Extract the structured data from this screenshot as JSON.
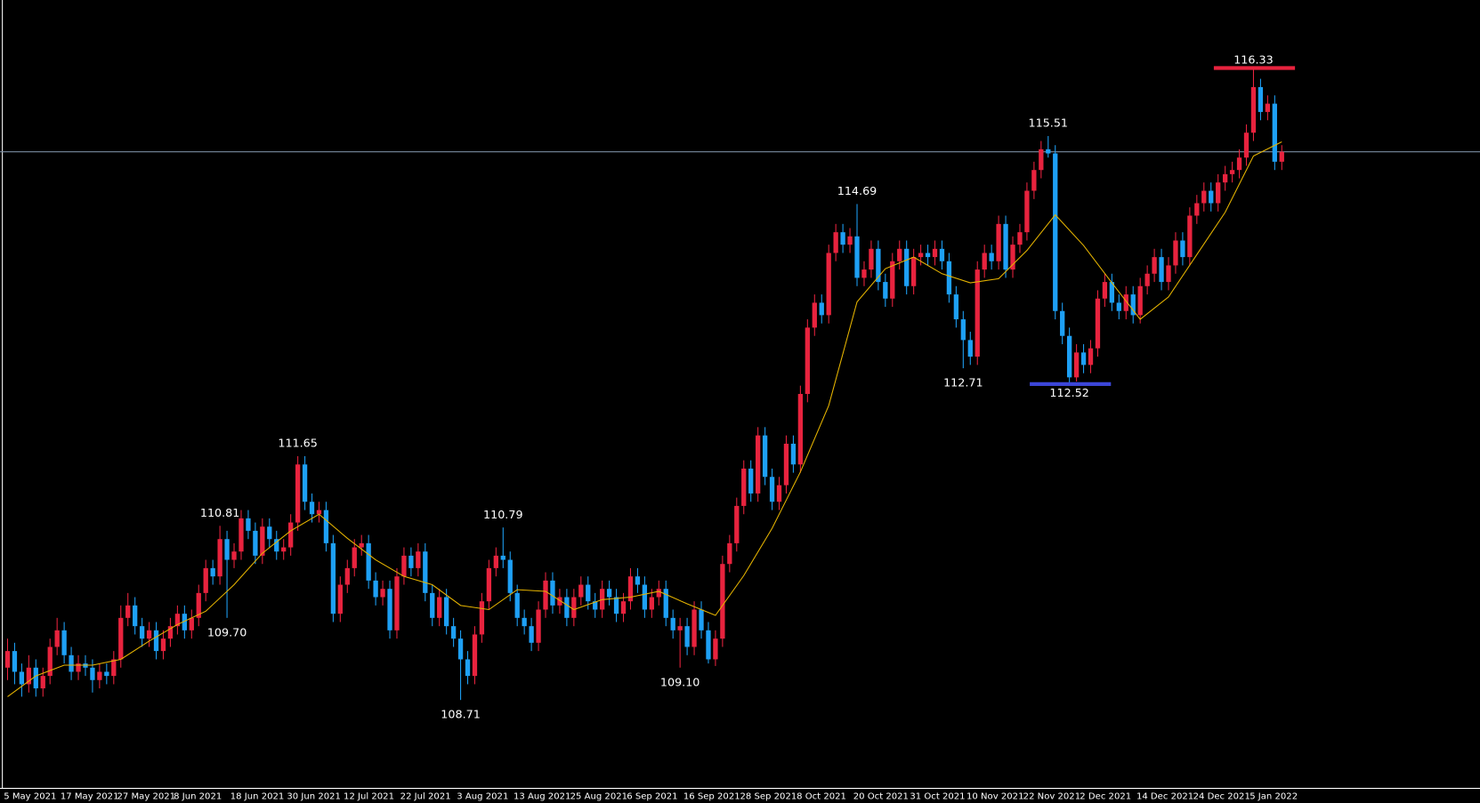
{
  "chart_data": {
    "type": "candlestick",
    "categories": [
      "5 May 2021",
      null,
      null,
      null,
      null,
      null,
      null,
      null,
      "17 May 2021",
      null,
      null,
      null,
      null,
      null,
      null,
      null,
      "27 May 2021",
      null,
      null,
      null,
      null,
      null,
      null,
      null,
      "8 Jun 2021",
      null,
      null,
      null,
      null,
      null,
      null,
      null,
      "18 Jun 2021",
      null,
      null,
      null,
      null,
      null,
      null,
      null,
      "30 Jun 2021",
      null,
      null,
      null,
      null,
      null,
      null,
      null,
      "12 Jul 2021",
      null,
      null,
      null,
      null,
      null,
      null,
      null,
      "22 Jul 2021",
      null,
      null,
      null,
      null,
      null,
      null,
      null,
      "3 Aug 2021",
      null,
      null,
      null,
      null,
      null,
      null,
      null,
      "13 Aug 2021",
      null,
      null,
      null,
      null,
      null,
      null,
      null,
      "25 Aug 2021",
      null,
      null,
      null,
      null,
      null,
      null,
      null,
      "6 Sep 2021",
      null,
      null,
      null,
      null,
      null,
      null,
      null,
      "16 Sep 2021",
      null,
      null,
      null,
      null,
      null,
      null,
      null,
      "28 Sep 2021",
      null,
      null,
      null,
      null,
      null,
      null,
      null,
      "8 Oct 2021",
      null,
      null,
      null,
      null,
      null,
      null,
      null,
      "20 Oct 2021",
      null,
      null,
      null,
      null,
      null,
      null,
      null,
      "31 Oct 2021",
      null,
      null,
      null,
      null,
      null,
      null,
      null,
      "10 Nov 2021",
      null,
      null,
      null,
      null,
      null,
      null,
      null,
      "22 Nov 2021",
      null,
      null,
      null,
      null,
      null,
      null,
      null,
      "2 Dec 2021",
      null,
      null,
      null,
      null,
      null,
      null,
      null,
      "14 Dec 2021",
      null,
      null,
      null,
      null,
      null,
      null,
      null,
      "24 Dec 2021",
      null,
      null,
      null,
      null,
      null,
      null,
      null,
      "5 Jan 2022",
      null,
      null,
      null,
      null
    ],
    "values": [
      [
        109.1,
        109.45,
        108.95,
        109.3
      ],
      [
        109.3,
        109.4,
        108.9,
        109.05
      ],
      [
        109.05,
        109.15,
        108.75,
        108.9
      ],
      [
        108.9,
        109.25,
        108.8,
        109.1
      ],
      [
        109.1,
        109.2,
        108.75,
        108.85
      ],
      [
        108.85,
        109.1,
        108.75,
        109.0
      ],
      [
        109.0,
        109.45,
        108.9,
        109.35
      ],
      [
        109.35,
        109.7,
        109.25,
        109.55
      ],
      [
        109.55,
        109.65,
        109.15,
        109.25
      ],
      [
        109.25,
        109.35,
        108.95,
        109.05
      ],
      [
        109.05,
        109.25,
        108.95,
        109.15
      ],
      [
        109.15,
        109.25,
        109.0,
        109.1
      ],
      [
        109.1,
        109.2,
        108.8,
        108.95
      ],
      [
        108.95,
        109.15,
        108.85,
        109.05
      ],
      [
        109.05,
        109.15,
        108.9,
        109.0
      ],
      [
        109.0,
        109.3,
        108.9,
        109.2
      ],
      [
        109.2,
        109.85,
        109.1,
        109.7
      ],
      [
        109.7,
        110.0,
        109.6,
        109.85
      ],
      [
        109.85,
        109.95,
        109.5,
        109.6
      ],
      [
        109.6,
        109.7,
        109.35,
        109.45
      ],
      [
        109.45,
        109.65,
        109.35,
        109.55
      ],
      [
        109.55,
        109.65,
        109.2,
        109.3
      ],
      [
        109.3,
        109.55,
        109.2,
        109.45
      ],
      [
        109.45,
        109.7,
        109.35,
        109.6
      ],
      [
        109.6,
        109.85,
        109.5,
        109.75
      ],
      [
        109.75,
        109.85,
        109.45,
        109.55
      ],
      [
        109.55,
        109.8,
        109.45,
        109.7
      ],
      [
        109.7,
        110.1,
        109.6,
        110.0
      ],
      [
        110.0,
        110.4,
        109.9,
        110.3
      ],
      [
        110.3,
        110.4,
        110.1,
        110.2
      ],
      [
        110.2,
        110.81,
        110.1,
        110.65
      ],
      [
        110.65,
        110.75,
        109.7,
        110.4
      ],
      [
        110.4,
        110.6,
        110.3,
        110.5
      ],
      [
        110.5,
        111.0,
        110.4,
        110.9
      ],
      [
        110.9,
        111.0,
        110.65,
        110.75
      ],
      [
        110.75,
        110.85,
        110.35,
        110.45
      ],
      [
        110.45,
        110.9,
        110.35,
        110.8
      ],
      [
        110.8,
        110.9,
        110.55,
        110.65
      ],
      [
        110.65,
        110.75,
        110.4,
        110.5
      ],
      [
        110.5,
        110.65,
        110.4,
        110.55
      ],
      [
        110.55,
        110.95,
        110.45,
        110.85
      ],
      [
        110.85,
        111.65,
        110.75,
        111.55
      ],
      [
        111.55,
        111.65,
        111.0,
        111.1
      ],
      [
        111.1,
        111.2,
        110.85,
        110.95
      ],
      [
        110.95,
        111.1,
        110.85,
        111.0
      ],
      [
        111.0,
        111.1,
        110.5,
        110.6
      ],
      [
        110.6,
        110.7,
        109.65,
        109.75
      ],
      [
        109.75,
        110.2,
        109.65,
        110.1
      ],
      [
        110.1,
        110.4,
        110.0,
        110.3
      ],
      [
        110.3,
        110.65,
        110.2,
        110.55
      ],
      [
        110.55,
        110.7,
        110.45,
        110.6
      ],
      [
        110.6,
        110.7,
        110.05,
        110.15
      ],
      [
        110.15,
        110.25,
        109.85,
        109.95
      ],
      [
        109.95,
        110.15,
        109.85,
        110.05
      ],
      [
        110.05,
        110.15,
        109.45,
        109.55
      ],
      [
        109.55,
        110.3,
        109.45,
        110.2
      ],
      [
        110.2,
        110.55,
        110.1,
        110.45
      ],
      [
        110.45,
        110.55,
        110.2,
        110.3
      ],
      [
        110.3,
        110.6,
        110.2,
        110.5
      ],
      [
        110.5,
        110.6,
        109.9,
        110.0
      ],
      [
        110.0,
        110.1,
        109.6,
        109.7
      ],
      [
        109.7,
        110.05,
        109.6,
        109.95
      ],
      [
        109.95,
        110.05,
        109.5,
        109.6
      ],
      [
        109.6,
        109.7,
        109.35,
        109.45
      ],
      [
        109.45,
        109.55,
        108.71,
        109.2
      ],
      [
        109.2,
        109.3,
        108.9,
        109.0
      ],
      [
        109.0,
        109.6,
        108.9,
        109.5
      ],
      [
        109.5,
        110.0,
        109.4,
        109.9
      ],
      [
        109.9,
        110.4,
        109.8,
        110.3
      ],
      [
        110.3,
        110.55,
        110.2,
        110.45
      ],
      [
        110.45,
        110.79,
        110.3,
        110.4
      ],
      [
        110.4,
        110.5,
        109.9,
        110.0
      ],
      [
        110.0,
        110.1,
        109.6,
        109.7
      ],
      [
        109.7,
        109.8,
        109.5,
        109.6
      ],
      [
        109.6,
        109.7,
        109.3,
        109.4
      ],
      [
        109.4,
        109.9,
        109.3,
        109.8
      ],
      [
        109.8,
        110.25,
        109.7,
        110.15
      ],
      [
        110.15,
        110.25,
        109.75,
        109.85
      ],
      [
        109.85,
        110.05,
        109.75,
        109.95
      ],
      [
        109.95,
        110.05,
        109.6,
        109.7
      ],
      [
        109.7,
        110.05,
        109.6,
        109.95
      ],
      [
        109.95,
        110.2,
        109.85,
        110.1
      ],
      [
        110.1,
        110.2,
        109.8,
        109.9
      ],
      [
        109.9,
        110.0,
        109.7,
        109.8
      ],
      [
        109.8,
        110.15,
        109.7,
        110.05
      ],
      [
        110.05,
        110.15,
        109.85,
        109.95
      ],
      [
        109.95,
        110.05,
        109.65,
        109.75
      ],
      [
        109.75,
        110.0,
        109.65,
        109.9
      ],
      [
        109.9,
        110.3,
        109.8,
        110.2
      ],
      [
        110.2,
        110.3,
        110.0,
        110.1
      ],
      [
        110.1,
        110.2,
        109.7,
        109.8
      ],
      [
        109.8,
        110.05,
        109.7,
        109.95
      ],
      [
        109.95,
        110.15,
        109.85,
        110.05
      ],
      [
        110.05,
        110.15,
        109.6,
        109.7
      ],
      [
        109.7,
        109.8,
        109.45,
        109.55
      ],
      [
        109.55,
        109.7,
        109.1,
        109.6
      ],
      [
        109.6,
        109.7,
        109.25,
        109.35
      ],
      [
        109.35,
        109.9,
        109.25,
        109.8
      ],
      [
        109.8,
        109.9,
        109.45,
        109.55
      ],
      [
        109.55,
        109.65,
        109.15,
        109.2
      ],
      [
        109.2,
        109.55,
        109.12,
        109.45
      ],
      [
        109.45,
        110.45,
        109.35,
        110.35
      ],
      [
        110.35,
        110.7,
        110.25,
        110.6
      ],
      [
        110.6,
        111.15,
        110.5,
        111.05
      ],
      [
        111.05,
        111.6,
        110.95,
        111.5
      ],
      [
        111.5,
        111.6,
        111.1,
        111.2
      ],
      [
        111.2,
        112.0,
        111.1,
        111.9
      ],
      [
        111.9,
        112.0,
        111.3,
        111.4
      ],
      [
        111.4,
        111.5,
        111.0,
        111.1
      ],
      [
        111.1,
        111.4,
        111.0,
        111.3
      ],
      [
        111.3,
        111.9,
        111.2,
        111.8
      ],
      [
        111.8,
        111.9,
        111.45,
        111.55
      ],
      [
        111.55,
        112.5,
        111.45,
        112.4
      ],
      [
        112.4,
        113.3,
        112.3,
        113.2
      ],
      [
        113.2,
        113.6,
        113.1,
        113.5
      ],
      [
        113.5,
        113.6,
        113.25,
        113.35
      ],
      [
        113.35,
        114.2,
        113.25,
        114.1
      ],
      [
        114.1,
        114.45,
        114.0,
        114.35
      ],
      [
        114.35,
        114.45,
        114.1,
        114.2
      ],
      [
        114.2,
        114.4,
        114.1,
        114.3
      ],
      [
        114.3,
        114.69,
        113.7,
        113.8
      ],
      [
        113.8,
        114.0,
        113.7,
        113.9
      ],
      [
        113.9,
        114.25,
        113.8,
        114.15
      ],
      [
        114.15,
        114.25,
        113.65,
        113.75
      ],
      [
        113.75,
        113.85,
        113.45,
        113.55
      ],
      [
        113.55,
        114.1,
        113.45,
        114.0
      ],
      [
        114.0,
        114.25,
        113.9,
        114.15
      ],
      [
        114.15,
        114.25,
        113.6,
        113.7
      ],
      [
        113.7,
        114.15,
        113.6,
        114.05
      ],
      [
        114.05,
        114.2,
        113.95,
        114.1
      ],
      [
        114.1,
        114.2,
        113.95,
        114.05
      ],
      [
        114.05,
        114.25,
        113.95,
        114.15
      ],
      [
        114.15,
        114.25,
        113.9,
        114.0
      ],
      [
        114.0,
        114.1,
        113.5,
        113.6
      ],
      [
        113.6,
        113.7,
        113.2,
        113.3
      ],
      [
        113.3,
        113.4,
        112.71,
        113.05
      ],
      [
        113.05,
        113.15,
        112.75,
        112.85
      ],
      [
        112.85,
        114.0,
        112.75,
        113.9
      ],
      [
        113.9,
        114.2,
        113.8,
        114.1
      ],
      [
        114.1,
        114.2,
        113.9,
        114.0
      ],
      [
        114.0,
        114.55,
        113.9,
        114.45
      ],
      [
        114.45,
        114.55,
        113.8,
        113.9
      ],
      [
        113.9,
        114.3,
        113.8,
        114.2
      ],
      [
        114.2,
        114.45,
        114.1,
        114.35
      ],
      [
        114.35,
        114.95,
        114.25,
        114.85
      ],
      [
        114.85,
        115.2,
        114.75,
        115.1
      ],
      [
        115.1,
        115.45,
        115.0,
        115.35
      ],
      [
        115.35,
        115.51,
        115.25,
        115.3
      ],
      [
        115.3,
        115.4,
        113.3,
        113.4
      ],
      [
        113.4,
        113.5,
        113.0,
        113.1
      ],
      [
        113.1,
        113.2,
        112.52,
        112.6
      ],
      [
        112.6,
        113.0,
        112.55,
        112.9
      ],
      [
        112.9,
        113.0,
        112.65,
        112.75
      ],
      [
        112.75,
        113.05,
        112.65,
        112.95
      ],
      [
        112.95,
        113.65,
        112.85,
        113.55
      ],
      [
        113.55,
        113.85,
        113.45,
        113.75
      ],
      [
        113.75,
        113.85,
        113.4,
        113.5
      ],
      [
        113.5,
        113.6,
        113.3,
        113.4
      ],
      [
        113.4,
        113.7,
        113.3,
        113.6
      ],
      [
        113.6,
        113.7,
        113.25,
        113.35
      ],
      [
        113.35,
        113.8,
        113.25,
        113.7
      ],
      [
        113.7,
        113.95,
        113.6,
        113.85
      ],
      [
        113.85,
        114.15,
        113.75,
        114.05
      ],
      [
        114.05,
        114.15,
        113.65,
        113.75
      ],
      [
        113.75,
        114.05,
        113.65,
        113.95
      ],
      [
        113.95,
        114.35,
        113.85,
        114.25
      ],
      [
        114.25,
        114.35,
        113.95,
        114.05
      ],
      [
        114.05,
        114.65,
        113.95,
        114.55
      ],
      [
        114.55,
        114.8,
        114.45,
        114.7
      ],
      [
        114.7,
        114.95,
        114.6,
        114.85
      ],
      [
        114.85,
        114.95,
        114.6,
        114.7
      ],
      [
        114.7,
        115.05,
        114.6,
        114.95
      ],
      [
        114.95,
        115.15,
        114.85,
        115.05
      ],
      [
        115.05,
        115.2,
        114.95,
        115.1
      ],
      [
        115.1,
        115.35,
        115.0,
        115.25
      ],
      [
        115.25,
        115.65,
        115.15,
        115.55
      ],
      [
        115.55,
        116.33,
        115.45,
        116.1
      ],
      [
        116.1,
        116.2,
        115.7,
        115.8
      ],
      [
        115.8,
        116.0,
        115.7,
        115.9
      ],
      [
        115.9,
        116.0,
        115.1,
        115.2
      ],
      [
        115.2,
        115.4,
        115.1,
        115.32
      ]
    ],
    "up_color": "#e8233e",
    "down_color": "#1ea0f5",
    "ma": {
      "color": "#e6b400",
      "x": [
        0,
        4,
        8,
        12,
        16,
        20,
        24,
        28,
        32,
        36,
        40,
        44,
        48,
        52,
        56,
        60,
        64,
        68,
        72,
        76,
        80,
        84,
        88,
        92,
        96,
        100,
        104,
        108,
        112,
        116,
        120,
        124,
        128,
        132,
        136,
        140,
        144,
        148,
        152,
        156,
        160,
        164,
        168,
        172,
        176,
        180
      ],
      "values": [
        108.75,
        109.0,
        109.13,
        109.13,
        109.2,
        109.42,
        109.62,
        109.78,
        110.1,
        110.48,
        110.75,
        110.95,
        110.66,
        110.4,
        110.2,
        110.1,
        109.85,
        109.8,
        110.04,
        110.02,
        109.8,
        109.92,
        109.95,
        110.02,
        109.87,
        109.73,
        110.21,
        110.78,
        111.46,
        112.26,
        113.51,
        113.91,
        114.05,
        113.85,
        113.74,
        113.79,
        114.13,
        114.56,
        114.19,
        113.74,
        113.3,
        113.57,
        114.08,
        114.59,
        115.27,
        115.44
      ]
    },
    "price_line_color": "#7a8ba0",
    "annotations": [
      {
        "label": "110.81",
        "value": 110.81,
        "x": 30
      },
      {
        "label": "109.70",
        "value": 109.7,
        "x": 31
      },
      {
        "label": "111.65",
        "value": 111.65,
        "x": 41
      },
      {
        "label": "108.71",
        "value": 108.71,
        "x": 64
      },
      {
        "label": "110.79",
        "value": 110.79,
        "x": 70
      },
      {
        "label": "109.10",
        "value": 109.1,
        "x": 95
      },
      {
        "label": "114.69",
        "value": 114.69,
        "x": 120
      },
      {
        "label": "112.71",
        "value": 112.71,
        "x": 135
      },
      {
        "label": "115.51",
        "value": 115.51,
        "x": 147
      },
      {
        "label": "112.52",
        "value": 112.52,
        "x": 150,
        "color": "#3c46d8"
      },
      {
        "label": "116.33",
        "value": 116.33,
        "x": 176,
        "color": "#e8233e"
      }
    ],
    "ylim": [
      107.65,
      117.15
    ]
  }
}
